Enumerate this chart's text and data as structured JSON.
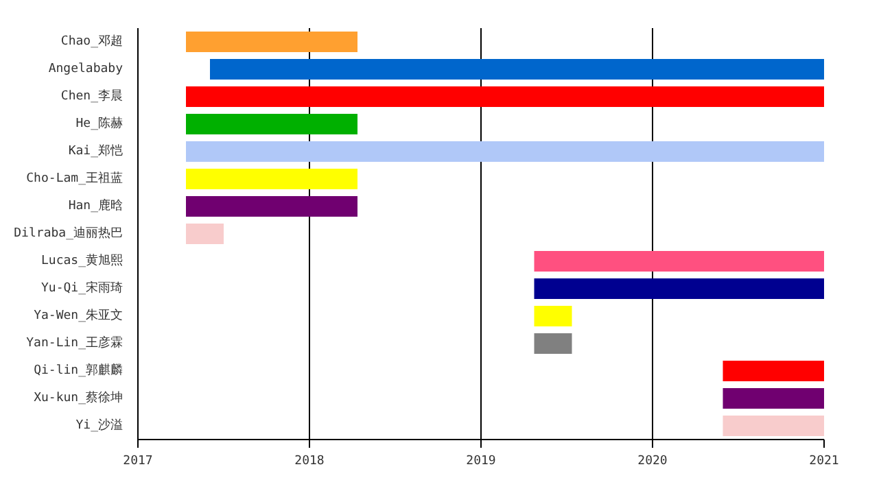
{
  "chart_data": {
    "type": "bar",
    "orientation": "horizontal",
    "categories": [
      "Chao_邓超",
      "Angelababy",
      "Chen_李晨",
      "He_陈赫",
      "Kai_郑恺",
      "Cho-Lam_王祖蓝",
      "Han_鹿晗",
      "Dilraba_迪丽热巴",
      "Lucas_黄旭熙",
      "Yu-Qi_宋雨琦",
      "Ya-Wen_朱亚文",
      "Yan-Lin_王彦霖",
      "Qi-lin_郭麒麟",
      "Xu-kun_蔡徐坤",
      "Yi_沙溢"
    ],
    "base": [
      2017.28,
      2017.42,
      2017.28,
      2017.28,
      2017.28,
      2017.28,
      2017.28,
      2017.28,
      2019.31,
      2019.31,
      2019.31,
      2019.31,
      2020.41,
      2020.41,
      2020.41
    ],
    "values": [
      1.0,
      3.58,
      3.72,
      1.0,
      3.72,
      1.0,
      1.0,
      0.22,
      1.69,
      1.69,
      0.22,
      0.22,
      0.59,
      0.59,
      0.59
    ],
    "colors": [
      "#ffa030",
      "#0066cc",
      "#ff0000",
      "#00b000",
      "#b0c8f8",
      "#ffff00",
      "#700070",
      "#f8cccc",
      "#ff5080",
      "#000090",
      "#ffff00",
      "#808080",
      "#ff0000",
      "#700070",
      "#f8cccc"
    ],
    "xlim": [
      2017,
      2021
    ],
    "xticks": [
      2017,
      2018,
      2019,
      2020,
      2021
    ],
    "grid": "x"
  }
}
